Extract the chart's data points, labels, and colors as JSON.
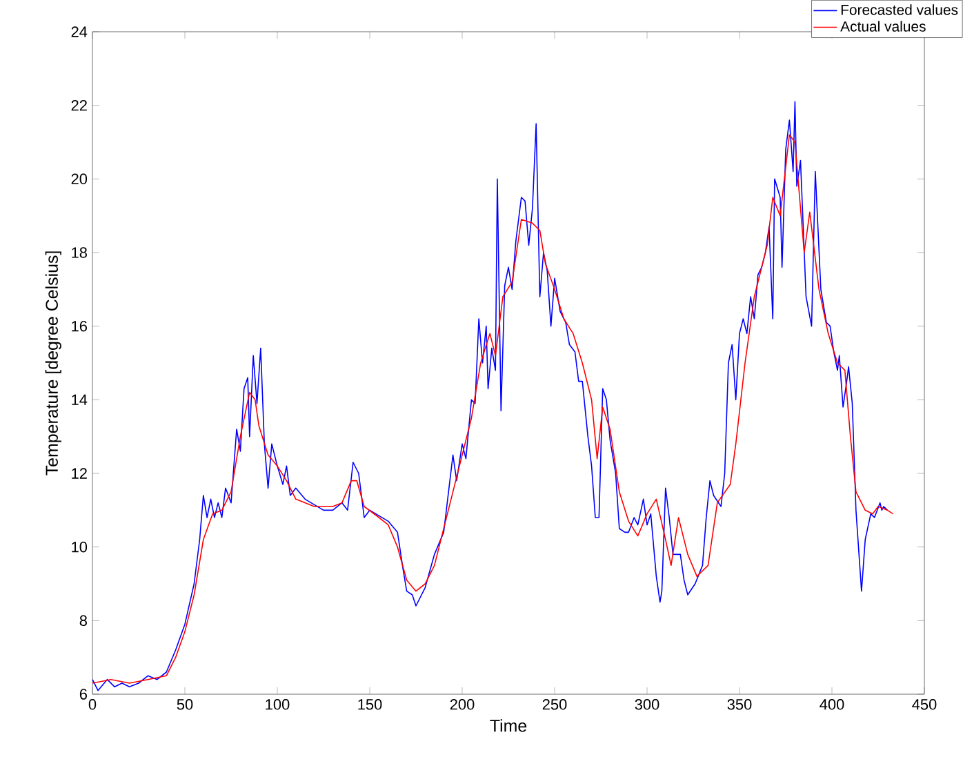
{
  "chart_data": {
    "type": "line",
    "xlabel": "Time",
    "ylabel": "Temperature [degree Celsius]",
    "xlim": [
      0,
      450
    ],
    "ylim": [
      6,
      24
    ],
    "xticks": [
      0,
      50,
      100,
      150,
      200,
      250,
      300,
      350,
      400,
      450
    ],
    "yticks": [
      6,
      8,
      10,
      12,
      14,
      16,
      18,
      20,
      22,
      24
    ],
    "legend": "top right",
    "series": [
      {
        "name": "Forecasted values",
        "color": "#0000ff",
        "x": [
          0,
          3,
          8,
          12,
          16,
          20,
          25,
          30,
          35,
          40,
          45,
          50,
          55,
          58,
          60,
          62,
          64,
          66,
          68,
          70,
          72,
          75,
          78,
          80,
          82,
          84,
          85,
          87,
          89,
          91,
          93,
          95,
          97,
          100,
          103,
          105,
          107,
          110,
          115,
          125,
          130,
          135,
          138,
          141,
          144,
          147,
          150,
          160,
          165,
          168,
          170,
          173,
          175,
          180,
          185,
          190,
          195,
          197,
          200,
          202,
          205,
          207,
          209,
          211,
          213,
          214,
          216,
          218,
          219,
          221,
          223,
          225,
          227,
          229,
          232,
          234,
          236,
          238,
          240,
          242,
          244,
          246,
          248,
          250,
          253,
          256,
          258,
          261,
          263,
          265,
          268,
          270,
          272,
          274,
          276,
          278,
          280,
          283,
          285,
          288,
          290,
          293,
          295,
          298,
          300,
          302,
          305,
          307,
          308,
          310,
          312,
          314,
          318,
          320,
          322,
          326,
          330,
          332,
          334,
          336,
          340,
          342,
          344,
          346,
          348,
          350,
          352,
          354,
          356,
          358,
          360,
          362,
          364,
          366,
          368,
          369,
          372,
          373,
          375,
          377,
          379,
          380,
          381,
          383,
          386,
          389,
          391,
          394,
          397,
          399,
          401,
          403,
          404,
          406,
          408,
          409,
          411,
          413,
          416,
          418,
          421,
          423,
          426,
          427,
          428,
          430
        ],
        "values": [
          6.4,
          6.1,
          6.4,
          6.2,
          6.3,
          6.2,
          6.3,
          6.5,
          6.4,
          6.6,
          7.2,
          7.9,
          9.0,
          10.2,
          11.4,
          10.8,
          11.3,
          10.8,
          11.2,
          10.8,
          11.6,
          11.2,
          13.2,
          12.6,
          14.3,
          14.6,
          13.0,
          15.2,
          13.9,
          15.4,
          12.8,
          11.6,
          12.8,
          12.2,
          11.7,
          12.2,
          11.4,
          11.6,
          11.3,
          11.0,
          11.0,
          11.2,
          11.0,
          12.3,
          12.0,
          10.8,
          11.0,
          10.7,
          10.4,
          9.4,
          8.8,
          8.7,
          8.4,
          8.9,
          9.8,
          10.4,
          12.5,
          11.8,
          12.8,
          12.4,
          14.0,
          13.9,
          16.2,
          15.0,
          16.0,
          14.3,
          15.4,
          14.8,
          20.0,
          13.7,
          17.1,
          17.6,
          17.0,
          18.3,
          19.5,
          19.4,
          18.2,
          19.2,
          21.5,
          16.8,
          18.0,
          17.5,
          16.0,
          17.3,
          16.4,
          16.1,
          15.5,
          15.3,
          14.5,
          14.5,
          13.0,
          12.2,
          10.8,
          10.8,
          14.3,
          14.0,
          12.9,
          12.0,
          10.5,
          10.4,
          10.4,
          10.8,
          10.6,
          11.3,
          10.6,
          10.9,
          9.2,
          8.5,
          8.8,
          11.6,
          10.8,
          9.8,
          9.8,
          9.1,
          8.7,
          9.0,
          9.5,
          10.8,
          11.8,
          11.4,
          11.1,
          12.0,
          15.0,
          15.5,
          14.0,
          15.8,
          16.2,
          15.8,
          16.8,
          16.2,
          17.4,
          17.6,
          18.0,
          18.7,
          16.2,
          20.0,
          19.5,
          17.6,
          20.8,
          21.6,
          20.2,
          22.1,
          19.8,
          20.5,
          16.8,
          16.0,
          20.2,
          17.0,
          16.1,
          16.0,
          15.3,
          14.8,
          15.2,
          13.8,
          14.5,
          14.9,
          13.9,
          11.0,
          8.8,
          10.2,
          10.9,
          10.8,
          11.2,
          11.0,
          11.1,
          11.0
        ]
      },
      {
        "name": "Actual values",
        "color": "#ff0000",
        "x": [
          0,
          10,
          20,
          30,
          40,
          45,
          50,
          55,
          60,
          65,
          70,
          75,
          80,
          85,
          88,
          90,
          95,
          100,
          105,
          110,
          120,
          130,
          135,
          140,
          143,
          147,
          155,
          160,
          165,
          170,
          175,
          180,
          185,
          190,
          195,
          200,
          205,
          210,
          215,
          218,
          222,
          227,
          232,
          238,
          242,
          245,
          250,
          255,
          260,
          265,
          270,
          273,
          276,
          280,
          285,
          290,
          295,
          300,
          305,
          310,
          313,
          317,
          322,
          327,
          333,
          338,
          345,
          348,
          353,
          358,
          365,
          368,
          372,
          377,
          380,
          385,
          388,
          393,
          398,
          403,
          407,
          410,
          413,
          418,
          422,
          425,
          430,
          433
        ],
        "values": [
          6.3,
          6.4,
          6.3,
          6.4,
          6.5,
          7.0,
          7.7,
          8.7,
          10.2,
          10.9,
          11.0,
          11.5,
          13.0,
          14.2,
          14.0,
          13.3,
          12.5,
          12.2,
          11.8,
          11.3,
          11.1,
          11.1,
          11.2,
          11.8,
          11.8,
          11.1,
          10.8,
          10.6,
          10.0,
          9.1,
          8.8,
          9.0,
          9.5,
          10.5,
          11.5,
          12.5,
          13.5,
          15.0,
          15.8,
          15.2,
          16.8,
          17.2,
          18.9,
          18.8,
          18.6,
          17.7,
          17.0,
          16.2,
          15.8,
          15.0,
          14.0,
          12.4,
          13.8,
          13.2,
          11.5,
          10.7,
          10.3,
          10.9,
          11.3,
          10.2,
          9.5,
          10.8,
          9.8,
          9.2,
          9.5,
          11.2,
          11.7,
          12.8,
          15.0,
          16.8,
          18.2,
          19.5,
          19.0,
          21.2,
          21.0,
          18.0,
          19.1,
          17.0,
          15.8,
          15.0,
          14.8,
          13.0,
          11.5,
          11.0,
          10.9,
          11.1,
          11.0,
          10.9
        ]
      }
    ]
  }
}
